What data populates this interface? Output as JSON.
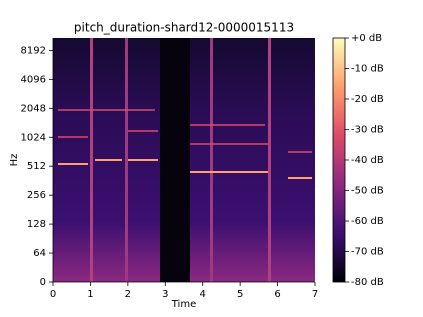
{
  "chart_data": {
    "type": "spectrogram",
    "title": "pitch_duration-shard12-0000015113",
    "x_label": "Time",
    "y_label": "Hz",
    "xlim": [
      0,
      7
    ],
    "xticks": [
      0,
      1,
      2,
      3,
      4,
      5,
      6,
      7
    ],
    "ylim": [
      0,
      11025
    ],
    "yscale": "symlog",
    "yticks": [
      0,
      64,
      128,
      256,
      512,
      1024,
      2048,
      4096,
      8192
    ],
    "colormap": "magma",
    "colorbar": {
      "lim": [
        -80,
        0
      ],
      "ticks": [
        {
          "value": 0,
          "label": "+0 dB"
        },
        {
          "value": -10,
          "label": "-10 dB"
        },
        {
          "value": -20,
          "label": "-20 dB"
        },
        {
          "value": -30,
          "label": "-30 dB"
        },
        {
          "value": -40,
          "label": "-40 dB"
        },
        {
          "value": -50,
          "label": "-50 dB"
        },
        {
          "value": -60,
          "label": "-60 dB"
        },
        {
          "value": -70,
          "label": "-70 dB"
        },
        {
          "value": -80,
          "label": "-80 dB"
        }
      ]
    }
  }
}
